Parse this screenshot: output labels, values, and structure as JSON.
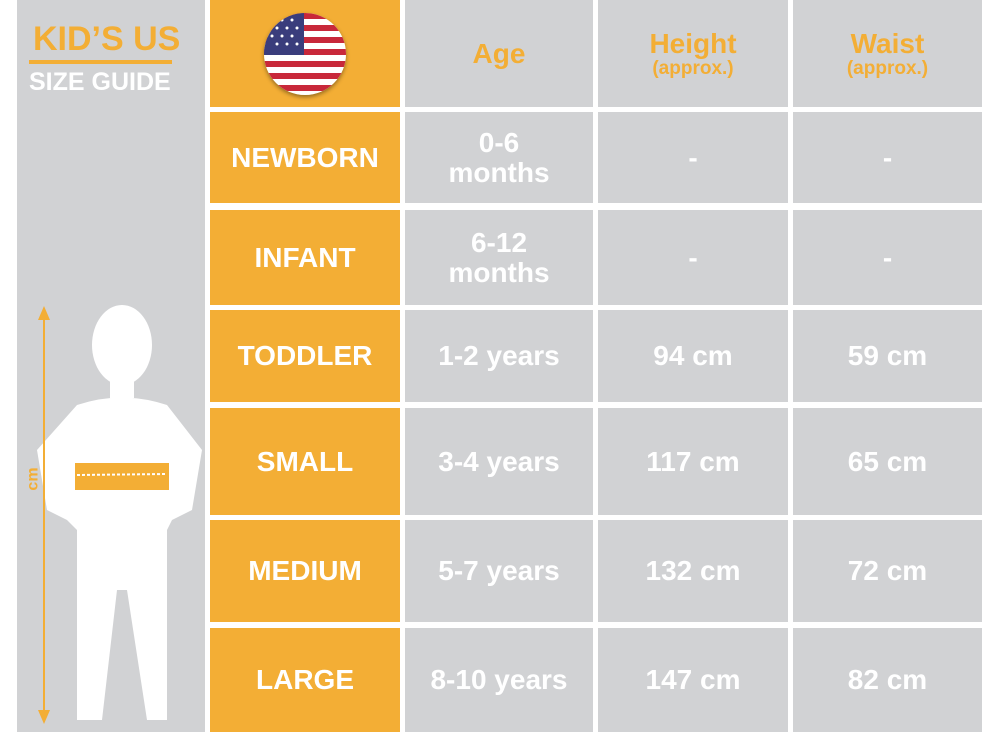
{
  "title": {
    "line1": "KID’S US",
    "line2": "SIZE GUIDE"
  },
  "measure_unit_label": "cm",
  "colors": {
    "accent": "#f3ae35",
    "cell": "#d1d2d4",
    "text": "#ffffff"
  },
  "header": {
    "flag_icon": "us-flag-icon",
    "age": "Age",
    "height": "Height",
    "height_note": "(approx.)",
    "waist": "Waist",
    "waist_note": "(approx.)"
  },
  "rows": [
    {
      "size": "NEWBORN",
      "age_line1": "0-6",
      "age_line2": "months",
      "height": "-",
      "waist": "-"
    },
    {
      "size": "INFANT",
      "age_line1": "6-12",
      "age_line2": "months",
      "height": "-",
      "waist": "-"
    },
    {
      "size": "TODDLER",
      "age_line1": "1-2 years",
      "age_line2": "",
      "height": "94 cm",
      "waist": "59 cm"
    },
    {
      "size": "SMALL",
      "age_line1": "3-4 years",
      "age_line2": "",
      "height": "117 cm",
      "waist": "65 cm"
    },
    {
      "size": "MEDIUM",
      "age_line1": "5-7 years",
      "age_line2": "",
      "height": "132 cm",
      "waist": "72 cm"
    },
    {
      "size": "LARGE",
      "age_line1": "8-10 years",
      "age_line2": "",
      "height": "147 cm",
      "waist": "82 cm"
    }
  ]
}
